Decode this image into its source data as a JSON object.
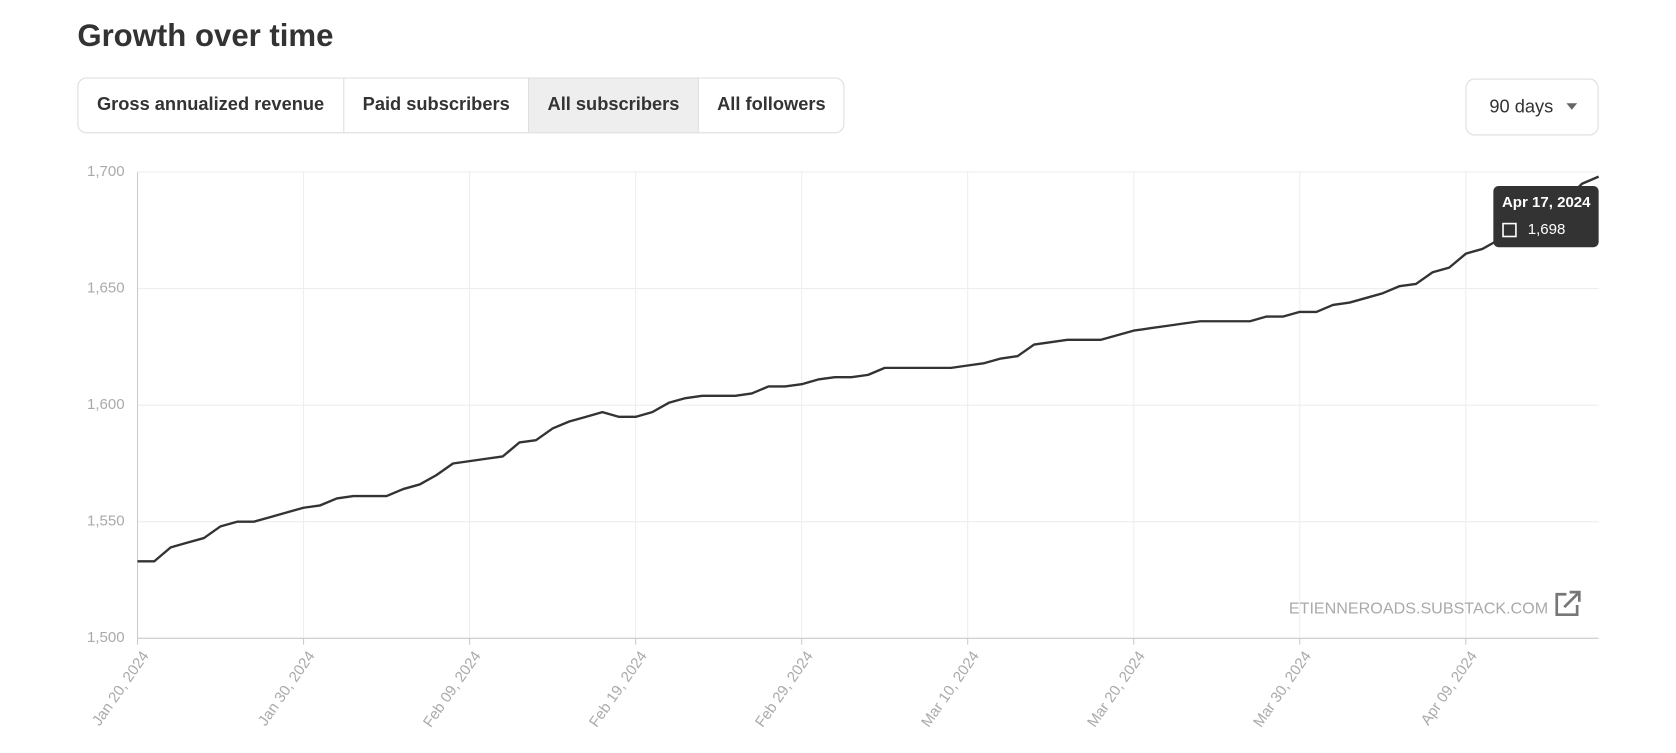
{
  "header": {
    "title": "Growth over time"
  },
  "tabs": {
    "items": [
      "Gross annualized revenue",
      "Paid subscribers",
      "All subscribers",
      "All followers"
    ],
    "selected": 2
  },
  "range_select": {
    "label": "90 days"
  },
  "chart_data": {
    "type": "line",
    "x": [
      "2024-01-20",
      "2024-01-21",
      "2024-01-22",
      "2024-01-23",
      "2024-01-24",
      "2024-01-25",
      "2024-01-26",
      "2024-01-27",
      "2024-01-28",
      "2024-01-29",
      "2024-01-30",
      "2024-01-31",
      "2024-02-01",
      "2024-02-02",
      "2024-02-03",
      "2024-02-04",
      "2024-02-05",
      "2024-02-06",
      "2024-02-07",
      "2024-02-08",
      "2024-02-09",
      "2024-02-10",
      "2024-02-11",
      "2024-02-12",
      "2024-02-13",
      "2024-02-14",
      "2024-02-15",
      "2024-02-16",
      "2024-02-17",
      "2024-02-18",
      "2024-02-19",
      "2024-02-20",
      "2024-02-21",
      "2024-02-22",
      "2024-02-23",
      "2024-02-24",
      "2024-02-25",
      "2024-02-26",
      "2024-02-27",
      "2024-02-28",
      "2024-02-29",
      "2024-03-01",
      "2024-03-02",
      "2024-03-03",
      "2024-03-04",
      "2024-03-05",
      "2024-03-06",
      "2024-03-07",
      "2024-03-08",
      "2024-03-09",
      "2024-03-10",
      "2024-03-11",
      "2024-03-12",
      "2024-03-13",
      "2024-03-14",
      "2024-03-15",
      "2024-03-16",
      "2024-03-17",
      "2024-03-18",
      "2024-03-19",
      "2024-03-20",
      "2024-03-21",
      "2024-03-22",
      "2024-03-23",
      "2024-03-24",
      "2024-03-25",
      "2024-03-26",
      "2024-03-27",
      "2024-03-28",
      "2024-03-29",
      "2024-03-30",
      "2024-03-31",
      "2024-04-01",
      "2024-04-02",
      "2024-04-03",
      "2024-04-04",
      "2024-04-05",
      "2024-04-06",
      "2024-04-07",
      "2024-04-08",
      "2024-04-09",
      "2024-04-10",
      "2024-04-11",
      "2024-04-12",
      "2024-04-13",
      "2024-04-14",
      "2024-04-15",
      "2024-04-16",
      "2024-04-17"
    ],
    "values": [
      1533,
      1533,
      1539,
      1541,
      1543,
      1548,
      1550,
      1550,
      1552,
      1554,
      1556,
      1557,
      1560,
      1561,
      1561,
      1561,
      1564,
      1566,
      1570,
      1575,
      1576,
      1577,
      1578,
      1584,
      1585,
      1590,
      1593,
      1595,
      1597,
      1595,
      1595,
      1597,
      1601,
      1603,
      1604,
      1604,
      1604,
      1605,
      1608,
      1608,
      1609,
      1611,
      1612,
      1612,
      1613,
      1616,
      1616,
      1616,
      1616,
      1616,
      1617,
      1618,
      1620,
      1621,
      1626,
      1627,
      1628,
      1628,
      1628,
      1630,
      1632,
      1633,
      1634,
      1635,
      1636,
      1636,
      1636,
      1636,
      1638,
      1638,
      1640,
      1640,
      1643,
      1644,
      1646,
      1648,
      1651,
      1652,
      1657,
      1659,
      1665,
      1667,
      1671,
      1673,
      1676,
      1681,
      1688,
      1695,
      1698
    ],
    "color": "#333333",
    "xlim": [
      "2024-01-20",
      "2024-04-17"
    ],
    "xticks": [
      {
        "value": "2024-01-20",
        "label": "Jan 20, 2024"
      },
      {
        "value": "2024-01-30",
        "label": "Jan 30, 2024"
      },
      {
        "value": "2024-02-09",
        "label": "Feb 09, 2024"
      },
      {
        "value": "2024-02-19",
        "label": "Feb 19, 2024"
      },
      {
        "value": "2024-02-29",
        "label": "Feb 29, 2024"
      },
      {
        "value": "2024-03-10",
        "label": "Mar 10, 2024"
      },
      {
        "value": "2024-03-20",
        "label": "Mar 20, 2024"
      },
      {
        "value": "2024-03-30",
        "label": "Mar 30, 2024"
      },
      {
        "value": "2024-04-09",
        "label": "Apr 09, 2024"
      }
    ],
    "ylim": [
      1500,
      1700
    ],
    "yticks": [
      {
        "value": 1500,
        "label": "1,500"
      },
      {
        "value": 1550,
        "label": "1,550"
      },
      {
        "value": 1600,
        "label": "1,600"
      },
      {
        "value": 1650,
        "label": "1,650"
      },
      {
        "value": 1700,
        "label": "1,700"
      }
    ],
    "grid": true,
    "tooltip": {
      "title": "Apr 17, 2024",
      "label": "1,698"
    },
    "watermark": "ETIENNEROADS.SUBSTACK.COM"
  }
}
